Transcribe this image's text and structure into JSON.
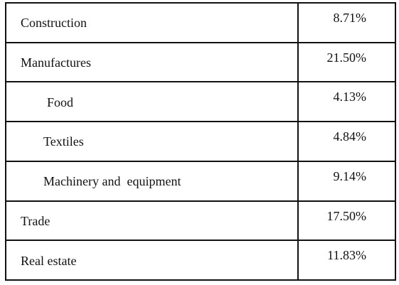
{
  "table": {
    "rows": [
      [
        "Construction",
        "8.71%"
      ],
      [
        "Manufactures",
        "21.50%"
      ],
      [
        "Food",
        "4.13%"
      ],
      [
        "Textiles",
        "4.84%"
      ],
      [
        "Machinery and  equipment",
        "9.14%"
      ],
      [
        "Trade",
        "17.50%"
      ],
      [
        "Real estate",
        "11.83%"
      ]
    ]
  }
}
